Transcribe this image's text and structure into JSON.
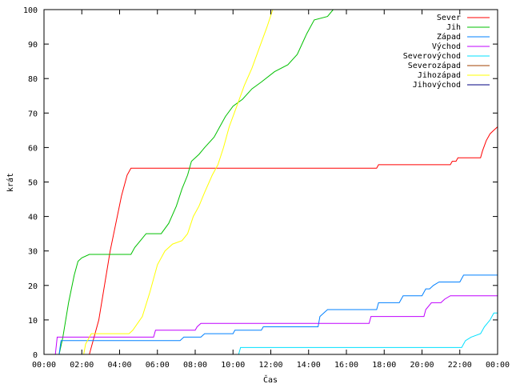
{
  "chart_data": {
    "type": "line",
    "xlabel": "Čas",
    "ylabel": "krát",
    "xlim": [
      0,
      24
    ],
    "ylim": [
      0,
      100
    ],
    "x_ticks": [
      "00:00",
      "02:00",
      "04:00",
      "06:00",
      "08:00",
      "10:00",
      "12:00",
      "14:00",
      "16:00",
      "18:00",
      "20:00",
      "22:00",
      "00:00"
    ],
    "y_ticks": [
      "0",
      "10",
      "20",
      "30",
      "40",
      "50",
      "60",
      "70",
      "80",
      "90",
      "100"
    ],
    "grid": false,
    "legend_position": "top-right",
    "series": [
      {
        "name": "Sever",
        "color": "#ff0000",
        "points": [
          [
            2.4,
            0
          ],
          [
            2.6,
            4
          ],
          [
            2.9,
            10
          ],
          [
            3.2,
            20
          ],
          [
            3.5,
            30
          ],
          [
            3.8,
            38
          ],
          [
            4.1,
            46
          ],
          [
            4.4,
            52
          ],
          [
            4.6,
            54
          ],
          [
            7.0,
            54
          ],
          [
            10.0,
            54
          ],
          [
            14.0,
            54
          ],
          [
            17.6,
            54
          ],
          [
            17.7,
            55
          ],
          [
            21.5,
            55
          ],
          [
            21.6,
            56
          ],
          [
            21.8,
            56
          ],
          [
            21.9,
            57
          ],
          [
            23.1,
            57
          ],
          [
            23.2,
            59
          ],
          [
            23.4,
            62
          ],
          [
            23.6,
            64
          ],
          [
            23.8,
            65
          ],
          [
            24.0,
            66
          ]
        ]
      },
      {
        "name": "Jih",
        "color": "#00c000",
        "points": [
          [
            0.8,
            0
          ],
          [
            1.0,
            5
          ],
          [
            1.3,
            15
          ],
          [
            1.6,
            23
          ],
          [
            1.8,
            27
          ],
          [
            2.0,
            28
          ],
          [
            2.4,
            29
          ],
          [
            3.5,
            29
          ],
          [
            4.6,
            29
          ],
          [
            4.8,
            31
          ],
          [
            5.1,
            33
          ],
          [
            5.4,
            35
          ],
          [
            6.2,
            35
          ],
          [
            6.6,
            38
          ],
          [
            7.0,
            43
          ],
          [
            7.3,
            48
          ],
          [
            7.6,
            52
          ],
          [
            7.8,
            56
          ],
          [
            8.2,
            58
          ],
          [
            8.5,
            60
          ],
          [
            9.0,
            63
          ],
          [
            9.3,
            66
          ],
          [
            9.6,
            69
          ],
          [
            10.0,
            72
          ],
          [
            10.5,
            74
          ],
          [
            11.0,
            77
          ],
          [
            11.5,
            79
          ],
          [
            12.2,
            82
          ],
          [
            12.9,
            84
          ],
          [
            13.4,
            87
          ],
          [
            13.9,
            93
          ],
          [
            14.3,
            97
          ],
          [
            15.0,
            98
          ],
          [
            15.3,
            100
          ]
        ]
      },
      {
        "name": "Západ",
        "color": "#0080ff",
        "points": [
          [
            0.8,
            0
          ],
          [
            0.9,
            4
          ],
          [
            2.2,
            4
          ],
          [
            3.0,
            4
          ],
          [
            5.0,
            4
          ],
          [
            7.2,
            4
          ],
          [
            7.4,
            5
          ],
          [
            8.3,
            5
          ],
          [
            8.5,
            6
          ],
          [
            10.0,
            6
          ],
          [
            10.1,
            7
          ],
          [
            11.5,
            7
          ],
          [
            11.6,
            8
          ],
          [
            14.5,
            8
          ],
          [
            14.6,
            11
          ],
          [
            15.0,
            13
          ],
          [
            17.6,
            13
          ],
          [
            17.7,
            15
          ],
          [
            18.8,
            15
          ],
          [
            19.0,
            17
          ],
          [
            20.0,
            17
          ],
          [
            20.2,
            19
          ],
          [
            20.4,
            19
          ],
          [
            20.6,
            20
          ],
          [
            20.9,
            21
          ],
          [
            22.0,
            21
          ],
          [
            22.2,
            23
          ],
          [
            24.0,
            23
          ]
        ]
      },
      {
        "name": "Východ",
        "color": "#c000ff",
        "points": [
          [
            0.6,
            0
          ],
          [
            0.7,
            5
          ],
          [
            1.5,
            5
          ],
          [
            2.2,
            5
          ],
          [
            4.5,
            5
          ],
          [
            5.8,
            5
          ],
          [
            5.9,
            7
          ],
          [
            8.0,
            7
          ],
          [
            8.1,
            8
          ],
          [
            8.3,
            9
          ],
          [
            10.0,
            9
          ],
          [
            12.0,
            9
          ],
          [
            14.5,
            9
          ],
          [
            17.2,
            9
          ],
          [
            17.3,
            11
          ],
          [
            20.1,
            11
          ],
          [
            20.2,
            13
          ],
          [
            20.5,
            15
          ],
          [
            21.0,
            15
          ],
          [
            21.2,
            16
          ],
          [
            21.5,
            17
          ],
          [
            24.0,
            17
          ]
        ]
      },
      {
        "name": "Severovýchod",
        "color": "#00e0ff",
        "points": [
          [
            10.3,
            0
          ],
          [
            10.4,
            2
          ],
          [
            14.0,
            2
          ],
          [
            18.0,
            2
          ],
          [
            22.1,
            2
          ],
          [
            22.3,
            4
          ],
          [
            22.6,
            5
          ],
          [
            23.1,
            6
          ],
          [
            23.3,
            8
          ],
          [
            23.6,
            10
          ],
          [
            23.8,
            12
          ],
          [
            24.0,
            12
          ]
        ]
      },
      {
        "name": "Severozápad",
        "color": "#a04000",
        "points": []
      },
      {
        "name": "Jihozápad",
        "color": "#ffff00",
        "points": [
          [
            2.1,
            0
          ],
          [
            2.2,
            3
          ],
          [
            2.5,
            6
          ],
          [
            3.0,
            6
          ],
          [
            4.5,
            6
          ],
          [
            4.7,
            7
          ],
          [
            5.2,
            11
          ],
          [
            5.6,
            18
          ],
          [
            6.0,
            26
          ],
          [
            6.4,
            30
          ],
          [
            6.8,
            32
          ],
          [
            7.3,
            33
          ],
          [
            7.6,
            35
          ],
          [
            7.9,
            40
          ],
          [
            8.2,
            43
          ],
          [
            8.5,
            47
          ],
          [
            8.9,
            52
          ],
          [
            9.2,
            55
          ],
          [
            9.5,
            60
          ],
          [
            9.8,
            66
          ],
          [
            10.2,
            72
          ],
          [
            10.6,
            78
          ],
          [
            11.0,
            83
          ],
          [
            11.4,
            89
          ],
          [
            11.8,
            95
          ],
          [
            12.1,
            100
          ]
        ]
      },
      {
        "name": "Jihovýchod",
        "color": "#000080",
        "points": []
      }
    ]
  }
}
